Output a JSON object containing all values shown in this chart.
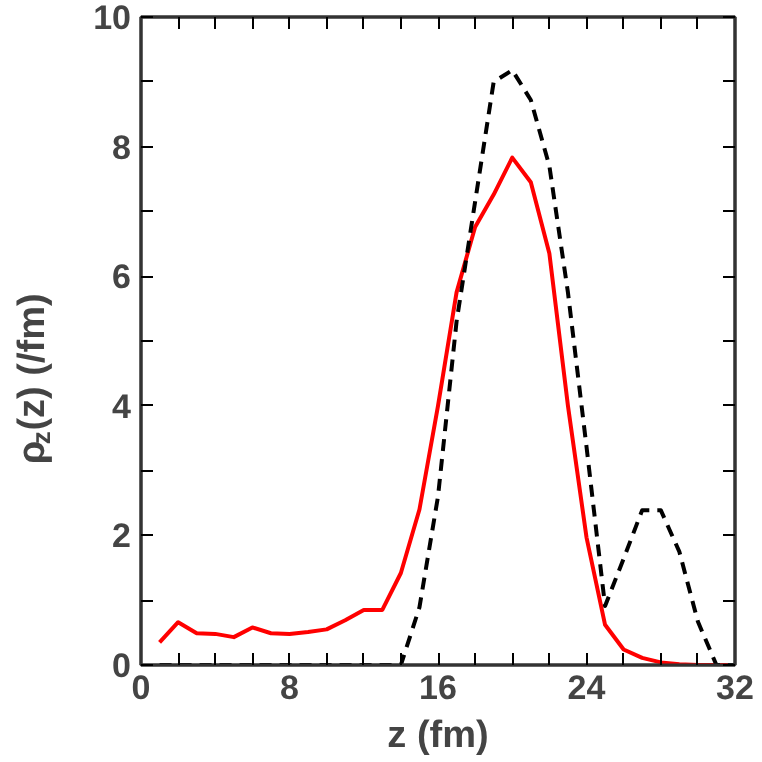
{
  "chart_data": {
    "type": "line",
    "xlabel": "z (fm)",
    "ylabel": "ρ$_{z}$(z) (/fm)",
    "x": [
      1,
      2,
      3,
      4,
      5,
      6,
      7,
      8,
      9,
      10,
      11,
      12,
      13,
      14,
      15,
      16,
      17,
      18,
      19,
      20,
      21,
      22,
      23,
      24,
      25,
      26,
      27,
      28,
      29,
      30,
      31,
      32
    ],
    "series": [
      {
        "color": "#ff0000",
        "line_style": "solid",
        "values": [
          0.35,
          0.66,
          0.49,
          0.48,
          0.43,
          0.58,
          0.49,
          0.48,
          0.51,
          0.55,
          0.69,
          0.85,
          0.85,
          1.42,
          2.4,
          4.0,
          5.75,
          6.76,
          7.26,
          7.83,
          7.45,
          6.35,
          4.0,
          1.97,
          0.62,
          0.24,
          0.11,
          0.04,
          0.01,
          0,
          0,
          0
        ]
      },
      {
        "color": "#000000",
        "line_style": "dashed",
        "values": [
          0,
          0,
          0,
          0,
          0,
          0,
          0,
          0,
          0,
          0,
          0,
          0,
          0,
          0,
          0.89,
          2.6,
          5.3,
          7.15,
          9.0,
          9.18,
          8.72,
          7.7,
          5.75,
          3.37,
          0.91,
          1.64,
          2.39,
          2.39,
          1.75,
          0.67,
          0,
          0
        ]
      }
    ],
    "xlim": [
      0,
      32
    ],
    "ylim": [
      0,
      10
    ],
    "xticks": [
      0,
      {
        "value": 2,
        "label": null
      },
      {
        "value": 4,
        "label": null
      },
      {
        "value": 6,
        "label": null
      },
      8,
      {
        "value": 10,
        "label": null
      },
      {
        "value": 12,
        "label": null
      },
      {
        "value": 14,
        "label": null
      },
      16,
      {
        "value": 18,
        "label": null
      },
      {
        "value": 20,
        "label": null
      },
      {
        "value": 22,
        "label": null
      },
      24,
      {
        "value": 26,
        "label": null
      },
      {
        "value": 28,
        "label": null
      },
      {
        "value": 30,
        "label": null
      },
      32
    ],
    "yticks": [
      0,
      {
        "value": 1,
        "label": null
      },
      2,
      {
        "value": 3,
        "label": null
      },
      4,
      {
        "value": 5,
        "label": null
      },
      6,
      {
        "value": 7,
        "label": null
      },
      8,
      {
        "value": 9,
        "label": null
      },
      10
    ],
    "grid": false
  }
}
